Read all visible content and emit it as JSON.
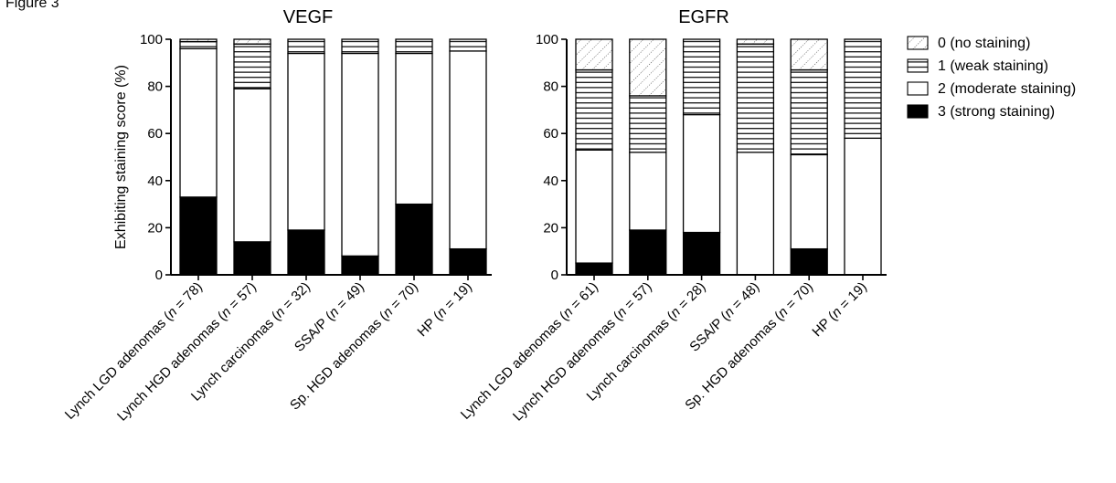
{
  "figure_label": "Figure 3",
  "legend": {
    "items": [
      {
        "score": 0,
        "label": "0 (no staining)",
        "pattern": "dotted-diagonal"
      },
      {
        "score": 1,
        "label": "1 (weak staining)",
        "pattern": "horizontal-lines"
      },
      {
        "score": 2,
        "label": "2 (moderate staining)",
        "pattern": "white"
      },
      {
        "score": 3,
        "label": "3 (strong staining)",
        "pattern": "black"
      }
    ]
  },
  "chart_data": [
    {
      "type": "bar",
      "stacked": true,
      "title": "VEGF",
      "ylabel": "Exhibiting staining score (%)",
      "ylim": [
        0,
        100
      ],
      "yticks": [
        0,
        20,
        40,
        60,
        80,
        100
      ],
      "categories": [
        {
          "main": "Lynch LGD adenomas (",
          "n": "n",
          "rest": " = 78)"
        },
        {
          "main": "Lynch HGD adenomas (",
          "n": "n",
          "rest": " = 57)"
        },
        {
          "main": "Lynch carcinomas (",
          "n": "n",
          "rest": " = 32)"
        },
        {
          "main": "SSA/P (",
          "n": "n",
          "rest": " = 49)"
        },
        {
          "main": "Sp. HGD adenomas (",
          "n": "n",
          "rest": " = 70)"
        },
        {
          "main": "HP (",
          "n": "n",
          "rest": " = 19)"
        }
      ],
      "series": [
        {
          "name": "3 (strong staining)",
          "values": [
            33,
            14,
            19,
            8,
            30,
            11
          ]
        },
        {
          "name": "2 (moderate staining)",
          "values": [
            63,
            65,
            75,
            86,
            64,
            84
          ]
        },
        {
          "name": "1 (weak staining)",
          "values": [
            3,
            19,
            6,
            6,
            6,
            5
          ]
        },
        {
          "name": "0 (no staining)",
          "values": [
            1,
            2,
            0,
            0,
            0,
            0
          ]
        }
      ]
    },
    {
      "type": "bar",
      "stacked": true,
      "title": "EGFR",
      "ylim": [
        0,
        100
      ],
      "yticks": [
        0,
        20,
        40,
        60,
        80,
        100
      ],
      "categories": [
        {
          "main": "Lynch LGD adenomas (",
          "n": "n",
          "rest": " = 61)"
        },
        {
          "main": "Lynch HGD adenomas (",
          "n": "n",
          "rest": " = 57)"
        },
        {
          "main": "Lynch carcinomas (",
          "n": "n",
          "rest": " = 28)"
        },
        {
          "main": "SSA/P (",
          "n": "n",
          "rest": " = 48)"
        },
        {
          "main": "Sp. HGD adenomas (",
          "n": "n",
          "rest": " = 70)"
        },
        {
          "main": "HP (",
          "n": "n",
          "rest": " = 19)"
        }
      ],
      "series": [
        {
          "name": "3 (strong staining)",
          "values": [
            5,
            19,
            18,
            0,
            11,
            0
          ]
        },
        {
          "name": "2 (moderate staining)",
          "values": [
            48,
            33,
            50,
            52,
            40,
            58
          ]
        },
        {
          "name": "1 (weak staining)",
          "values": [
            34,
            24,
            32,
            46,
            36,
            42
          ]
        },
        {
          "name": "0 (no staining)",
          "values": [
            13,
            24,
            0,
            2,
            13,
            0
          ]
        }
      ]
    }
  ]
}
